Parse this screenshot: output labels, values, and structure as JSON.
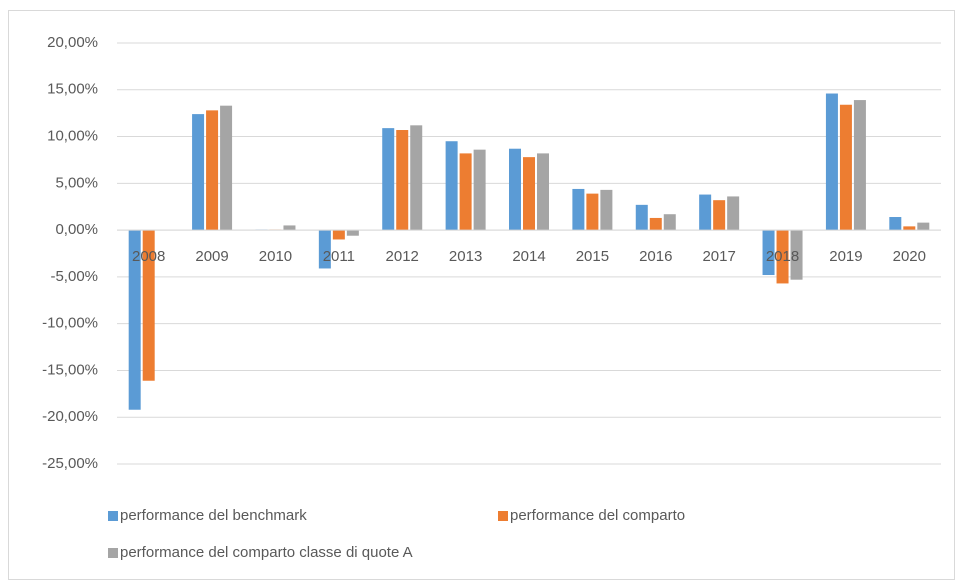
{
  "chart_data": {
    "type": "bar",
    "categories": [
      "2008",
      "2009",
      "2010",
      "2011",
      "2012",
      "2013",
      "2014",
      "2015",
      "2016",
      "2017",
      "2018",
      "2019",
      "2020"
    ],
    "series": [
      {
        "name": "performance del benchmark",
        "color": "#5b9bd5",
        "values": [
          -19.2,
          12.4,
          0.05,
          -4.1,
          10.9,
          9.5,
          8.7,
          4.4,
          2.7,
          3.8,
          -4.8,
          14.6,
          1.4
        ]
      },
      {
        "name": "performance del comparto",
        "color": "#ed7d31",
        "values": [
          -16.1,
          12.8,
          0.05,
          -1.0,
          10.7,
          8.2,
          7.8,
          3.9,
          1.3,
          3.2,
          -5.7,
          13.4,
          0.4
        ]
      },
      {
        "name": "performance del comparto classe di quote A",
        "color": "#a5a5a5",
        "values": [
          null,
          13.3,
          0.5,
          -0.6,
          11.2,
          8.6,
          8.2,
          4.3,
          1.7,
          3.6,
          -5.3,
          13.9,
          0.8
        ]
      }
    ],
    "ylim": [
      -25,
      20
    ],
    "yticks": [
      {
        "value": -25,
        "label": "-25,00%"
      },
      {
        "value": -20,
        "label": "-20,00%"
      },
      {
        "value": -15,
        "label": "-15,00%"
      },
      {
        "value": -10,
        "label": "-10,00%"
      },
      {
        "value": -5,
        "label": "-5,00%"
      },
      {
        "value": 0,
        "label": "0,00%"
      },
      {
        "value": 5,
        "label": "5,00%"
      },
      {
        "value": 10,
        "label": "10,00%"
      },
      {
        "value": 15,
        "label": "15,00%"
      },
      {
        "value": 20,
        "label": "20,00%"
      }
    ],
    "grid": true,
    "legend": "bottom"
  }
}
